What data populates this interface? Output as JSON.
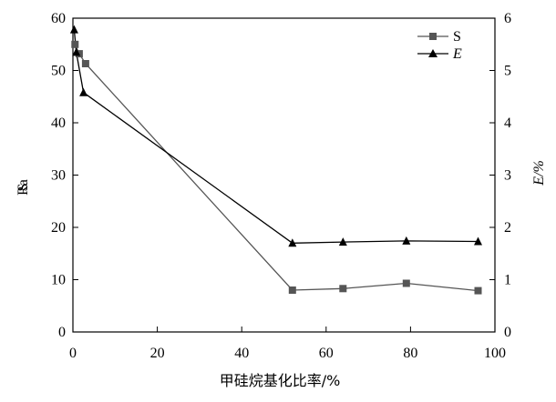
{
  "chart_data": {
    "type": "line",
    "xlabel": "甲硅烷基化比率/%",
    "ylabel_left": "S",
    "ylabel_left_overprint": "Ra",
    "ylabel_right": "E/%",
    "xlim": [
      0,
      100
    ],
    "ylim_left": [
      0,
      60
    ],
    "ylim_right": [
      0,
      6
    ],
    "x_ticks": [
      0,
      20,
      40,
      60,
      80,
      100
    ],
    "y_left_ticks": [
      0,
      10,
      20,
      30,
      40,
      50,
      60
    ],
    "y_right_ticks": [
      0,
      1,
      2,
      3,
      4,
      5,
      6
    ],
    "grid": false,
    "legend_position": "top-right",
    "series": [
      {
        "name": "S",
        "axis": "left",
        "marker": "square",
        "color": "#555555",
        "x": [
          0.5,
          1.5,
          3,
          52,
          64,
          79,
          96
        ],
        "y": [
          55,
          53.2,
          51.3,
          8,
          8.3,
          9.3,
          7.9
        ]
      },
      {
        "name": "E",
        "axis": "right",
        "marker": "triangle",
        "color": "#000000",
        "x": [
          0.3,
          0.8,
          2.5,
          52,
          64,
          79,
          96
        ],
        "y": [
          5.78,
          5.35,
          4.58,
          1.7,
          1.72,
          1.74,
          1.73
        ]
      }
    ]
  }
}
